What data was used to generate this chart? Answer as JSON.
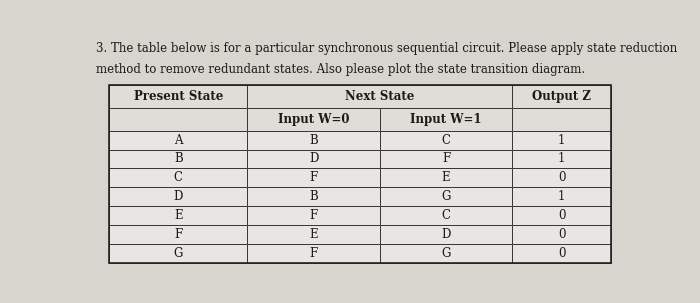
{
  "title_line1": "3. The table below is for a particular synchronous sequential circuit. Please apply state reduction",
  "title_line2": "method to remove redundant states. Also please plot the state transition diagram.",
  "present_states": [
    "A",
    "B",
    "C",
    "D",
    "E",
    "F",
    "G"
  ],
  "next_w0": [
    "B",
    "D",
    "F",
    "B",
    "F",
    "E",
    "F"
  ],
  "next_w1": [
    "C",
    "F",
    "E",
    "G",
    "C",
    "D",
    "G"
  ],
  "output_z": [
    "1",
    "1",
    "0",
    "1",
    "0",
    "0",
    "0"
  ],
  "page_bg": "#d8d5cf",
  "cell_bg": "#e8e6e2",
  "header_bg": "#e0ddd8",
  "text_color": "#1a1a1a",
  "title_fontsize": 8.5,
  "cell_fontsize": 8.5,
  "header_fontsize": 8.5
}
